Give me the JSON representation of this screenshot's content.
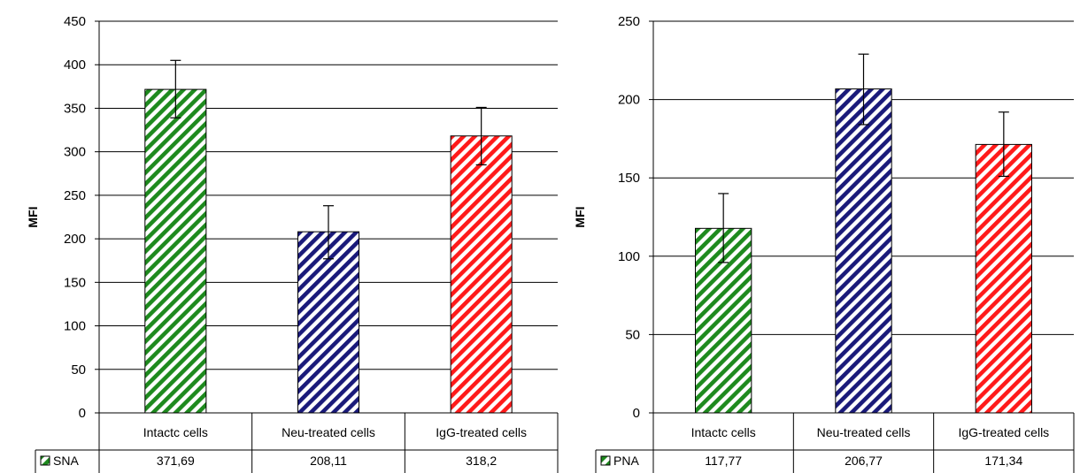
{
  "colors": {
    "green": "#1e8a1e",
    "navy": "#1a1a7a",
    "red": "#ff1a1a"
  },
  "chart_data": [
    {
      "type": "bar",
      "ylabel": "MFI",
      "ylim": [
        0,
        450
      ],
      "yticks": [
        0,
        50,
        100,
        150,
        200,
        250,
        300,
        350,
        400,
        450
      ],
      "grid": true,
      "categories": [
        "Intactc cells",
        "Neu-treated cells",
        "IgG-treated cells"
      ],
      "series": [
        {
          "name": "SNA",
          "values": [
            371.69,
            208.11,
            318.2
          ],
          "value_labels": [
            "371,69",
            "208,11",
            "318,2"
          ],
          "error_low": [
            339,
            177,
            285
          ],
          "error_high": [
            405,
            238,
            351
          ],
          "bar_colors": [
            "#1e8a1e",
            "#1a1a7a",
            "#ff1a1a"
          ],
          "legend_color": "#1e8a1e"
        }
      ],
      "legend": "data table"
    },
    {
      "type": "bar",
      "ylabel": "MFI",
      "ylim": [
        0,
        250
      ],
      "yticks": [
        0,
        50,
        100,
        150,
        200,
        250
      ],
      "grid": true,
      "categories": [
        "Intactc cells",
        "Neu-treated cells",
        "IgG-treated cells"
      ],
      "series": [
        {
          "name": "PNA",
          "values": [
            117.77,
            206.77,
            171.34
          ],
          "value_labels": [
            "117,77",
            "206,77",
            "171,34"
          ],
          "error_low": [
            96,
            184,
            151
          ],
          "error_high": [
            140,
            229,
            192
          ],
          "bar_colors": [
            "#1e8a1e",
            "#1a1a7a",
            "#ff1a1a"
          ],
          "legend_color": "#1e8a1e"
        }
      ],
      "legend": "data table"
    }
  ]
}
